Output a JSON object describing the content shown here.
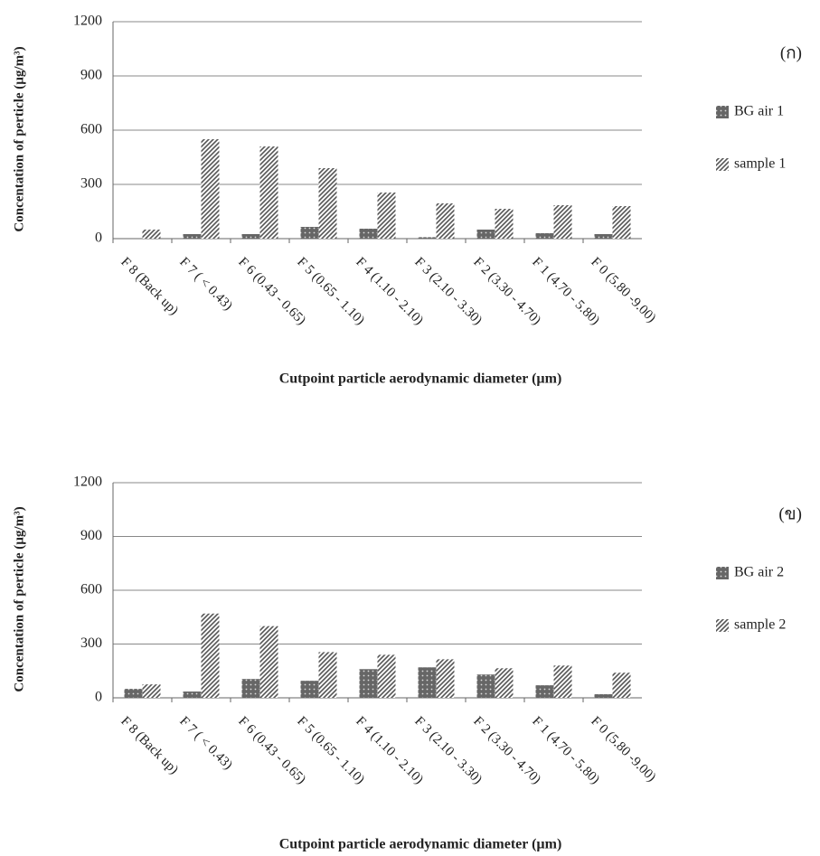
{
  "chart_data": [
    {
      "type": "bar",
      "panel_label": "(ก)",
      "ylabel": "Concentation of perticle  (µg/m³)",
      "xlabel": "Cutpoint particle aerodynamic diameter (µm)",
      "categories": [
        "F 8 (Back up)",
        "F 7 ( < 0.43)",
        "F 6 (0.43 - 0.65)",
        "F 5 (0.65 - 1.10)",
        "F 4 (1.10 - 2.10)",
        "F 3 (2.10 - 3.30)",
        "F 2 (3.30 - 4.70)",
        "F 1 (4.70 - 5.80)",
        "F 0 (5.80 -9.00)"
      ],
      "series": [
        {
          "name": "BG air 1",
          "color": "#666666",
          "pattern": "dots",
          "values": [
            0,
            25,
            25,
            65,
            55,
            8,
            50,
            30,
            25
          ]
        },
        {
          "name": "sample 1",
          "color": "#555555",
          "pattern": "hatch",
          "values": [
            50,
            550,
            510,
            390,
            255,
            195,
            165,
            185,
            180
          ]
        }
      ],
      "ylim": [
        0,
        1200
      ],
      "yticks": [
        0,
        300,
        600,
        900,
        1200
      ],
      "grid": true
    },
    {
      "type": "bar",
      "panel_label": "(ข)",
      "ylabel": "Concentation of perticle  (µg/m³)",
      "xlabel": "Cutpoint particle aerodynamic diameter (µm)",
      "categories": [
        "F 8 (Back up)",
        "F 7 ( < 0.43)",
        "F 6 (0.43 - 0.65)",
        "F 5 (0.65 - 1.10)",
        "F 4 (1.10 - 2.10)",
        "F 3 (2.10 - 3.30)",
        "F 2 (3.30 - 4.70)",
        "F 1 (4.70 - 5.80)",
        "F 0 (5.80 -9.00)"
      ],
      "series": [
        {
          "name": "BG air 2",
          "color": "#666666",
          "pattern": "dots",
          "values": [
            50,
            35,
            105,
            95,
            160,
            170,
            130,
            70,
            20
          ]
        },
        {
          "name": "sample 2",
          "color": "#555555",
          "pattern": "hatch",
          "values": [
            75,
            470,
            400,
            255,
            240,
            215,
            165,
            180,
            140
          ]
        }
      ],
      "ylim": [
        0,
        1200
      ],
      "yticks": [
        0,
        300,
        600,
        900,
        1200
      ],
      "grid": true
    }
  ]
}
